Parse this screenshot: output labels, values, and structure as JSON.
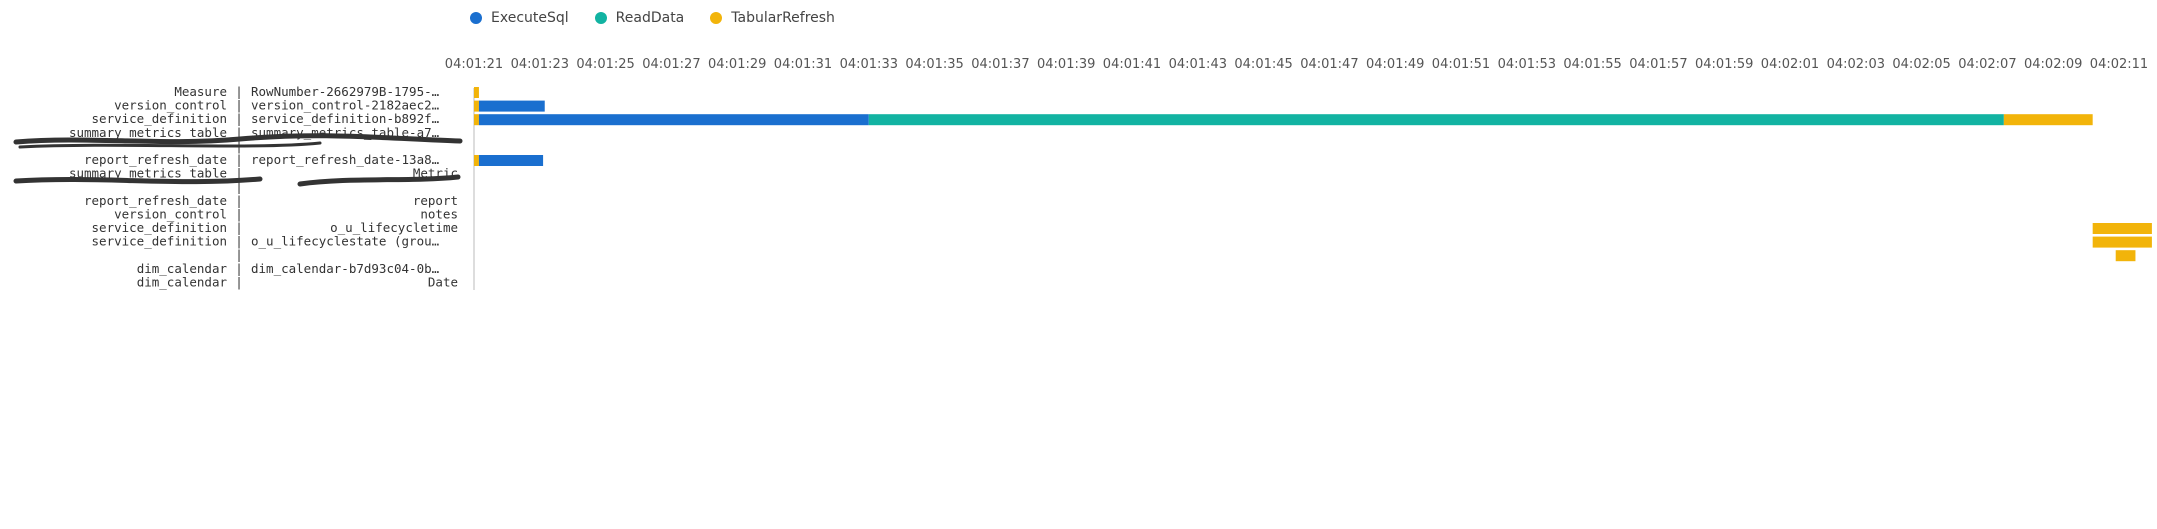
{
  "legend": [
    {
      "name": "ExecuteSql",
      "color": "#1a6fcf"
    },
    {
      "name": "ReadData",
      "color": "#12b3a2"
    },
    {
      "name": "TabularRefresh",
      "color": "#f2b40a"
    }
  ],
  "chart_data": {
    "type": "bar",
    "orientation": "horizontal-timeline",
    "x_ticks": [
      "04:01:21",
      "04:01:23",
      "04:01:25",
      "04:01:27",
      "04:01:29",
      "04:01:31",
      "04:01:33",
      "04:01:35",
      "04:01:37",
      "04:01:39",
      "04:01:41",
      "04:01:43",
      "04:01:45",
      "04:01:47",
      "04:01:49",
      "04:01:51",
      "04:01:53",
      "04:01:55",
      "04:01:57",
      "04:01:59",
      "04:02:01",
      "04:02:03",
      "04:02:05",
      "04:02:07",
      "04:02:09",
      "04:02:11"
    ],
    "x_range_seconds": [
      0,
      50
    ],
    "rows": [
      {
        "left": "Measure",
        "right": "RowNumber-2662979B-1795-…"
      },
      {
        "left": "version_control",
        "right": "version_control-2182aec2…"
      },
      {
        "left": "service_definition",
        "right": "service_definition-b892f…"
      },
      {
        "left": "summary_metrics_table",
        "right": "summary_metrics_table-a7…"
      },
      {
        "left": "",
        "right": ""
      },
      {
        "left": "report_refresh_date",
        "right": "report_refresh_date-13a8…"
      },
      {
        "left": "summary_metrics_table",
        "right": "Metric"
      },
      {
        "left": "",
        "right": ""
      },
      {
        "left": "report_refresh_date",
        "right": "report"
      },
      {
        "left": "version_control",
        "right": "notes"
      },
      {
        "left": "service_definition",
        "right": "o_u_lifecycletime"
      },
      {
        "left": "service_definition",
        "right": "o_u_lifecyclestate (grou…"
      },
      {
        "left": "",
        "right": ""
      },
      {
        "left": "dim_calendar",
        "right": "dim_calendar-b7d93c04-0b…"
      },
      {
        "left": "dim_calendar",
        "right": "Date"
      }
    ],
    "bars": [
      {
        "row": 0,
        "series": "TabularRefresh",
        "start": 0.0,
        "end": 0.15
      },
      {
        "row": 1,
        "series": "TabularRefresh",
        "start": 0.0,
        "end": 0.15
      },
      {
        "row": 1,
        "series": "ExecuteSql",
        "start": 0.15,
        "end": 2.15
      },
      {
        "row": 2,
        "series": "TabularRefresh",
        "start": 0.0,
        "end": 0.15
      },
      {
        "row": 2,
        "series": "ExecuteSql",
        "start": 0.15,
        "end": 12.0
      },
      {
        "row": 2,
        "series": "ReadData",
        "start": 12.0,
        "end": 46.5
      },
      {
        "row": 2,
        "series": "TabularRefresh",
        "start": 46.5,
        "end": 49.2
      },
      {
        "row": 5,
        "series": "TabularRefresh",
        "start": 0.0,
        "end": 0.15
      },
      {
        "row": 5,
        "series": "ExecuteSql",
        "start": 0.15,
        "end": 2.1
      },
      {
        "row": 10,
        "series": "TabularRefresh",
        "start": 49.2,
        "end": 51.0
      },
      {
        "row": 11,
        "series": "TabularRefresh",
        "start": 49.2,
        "end": 51.0
      },
      {
        "row": 12,
        "series": "TabularRefresh",
        "start": 49.9,
        "end": 50.5
      }
    ]
  }
}
